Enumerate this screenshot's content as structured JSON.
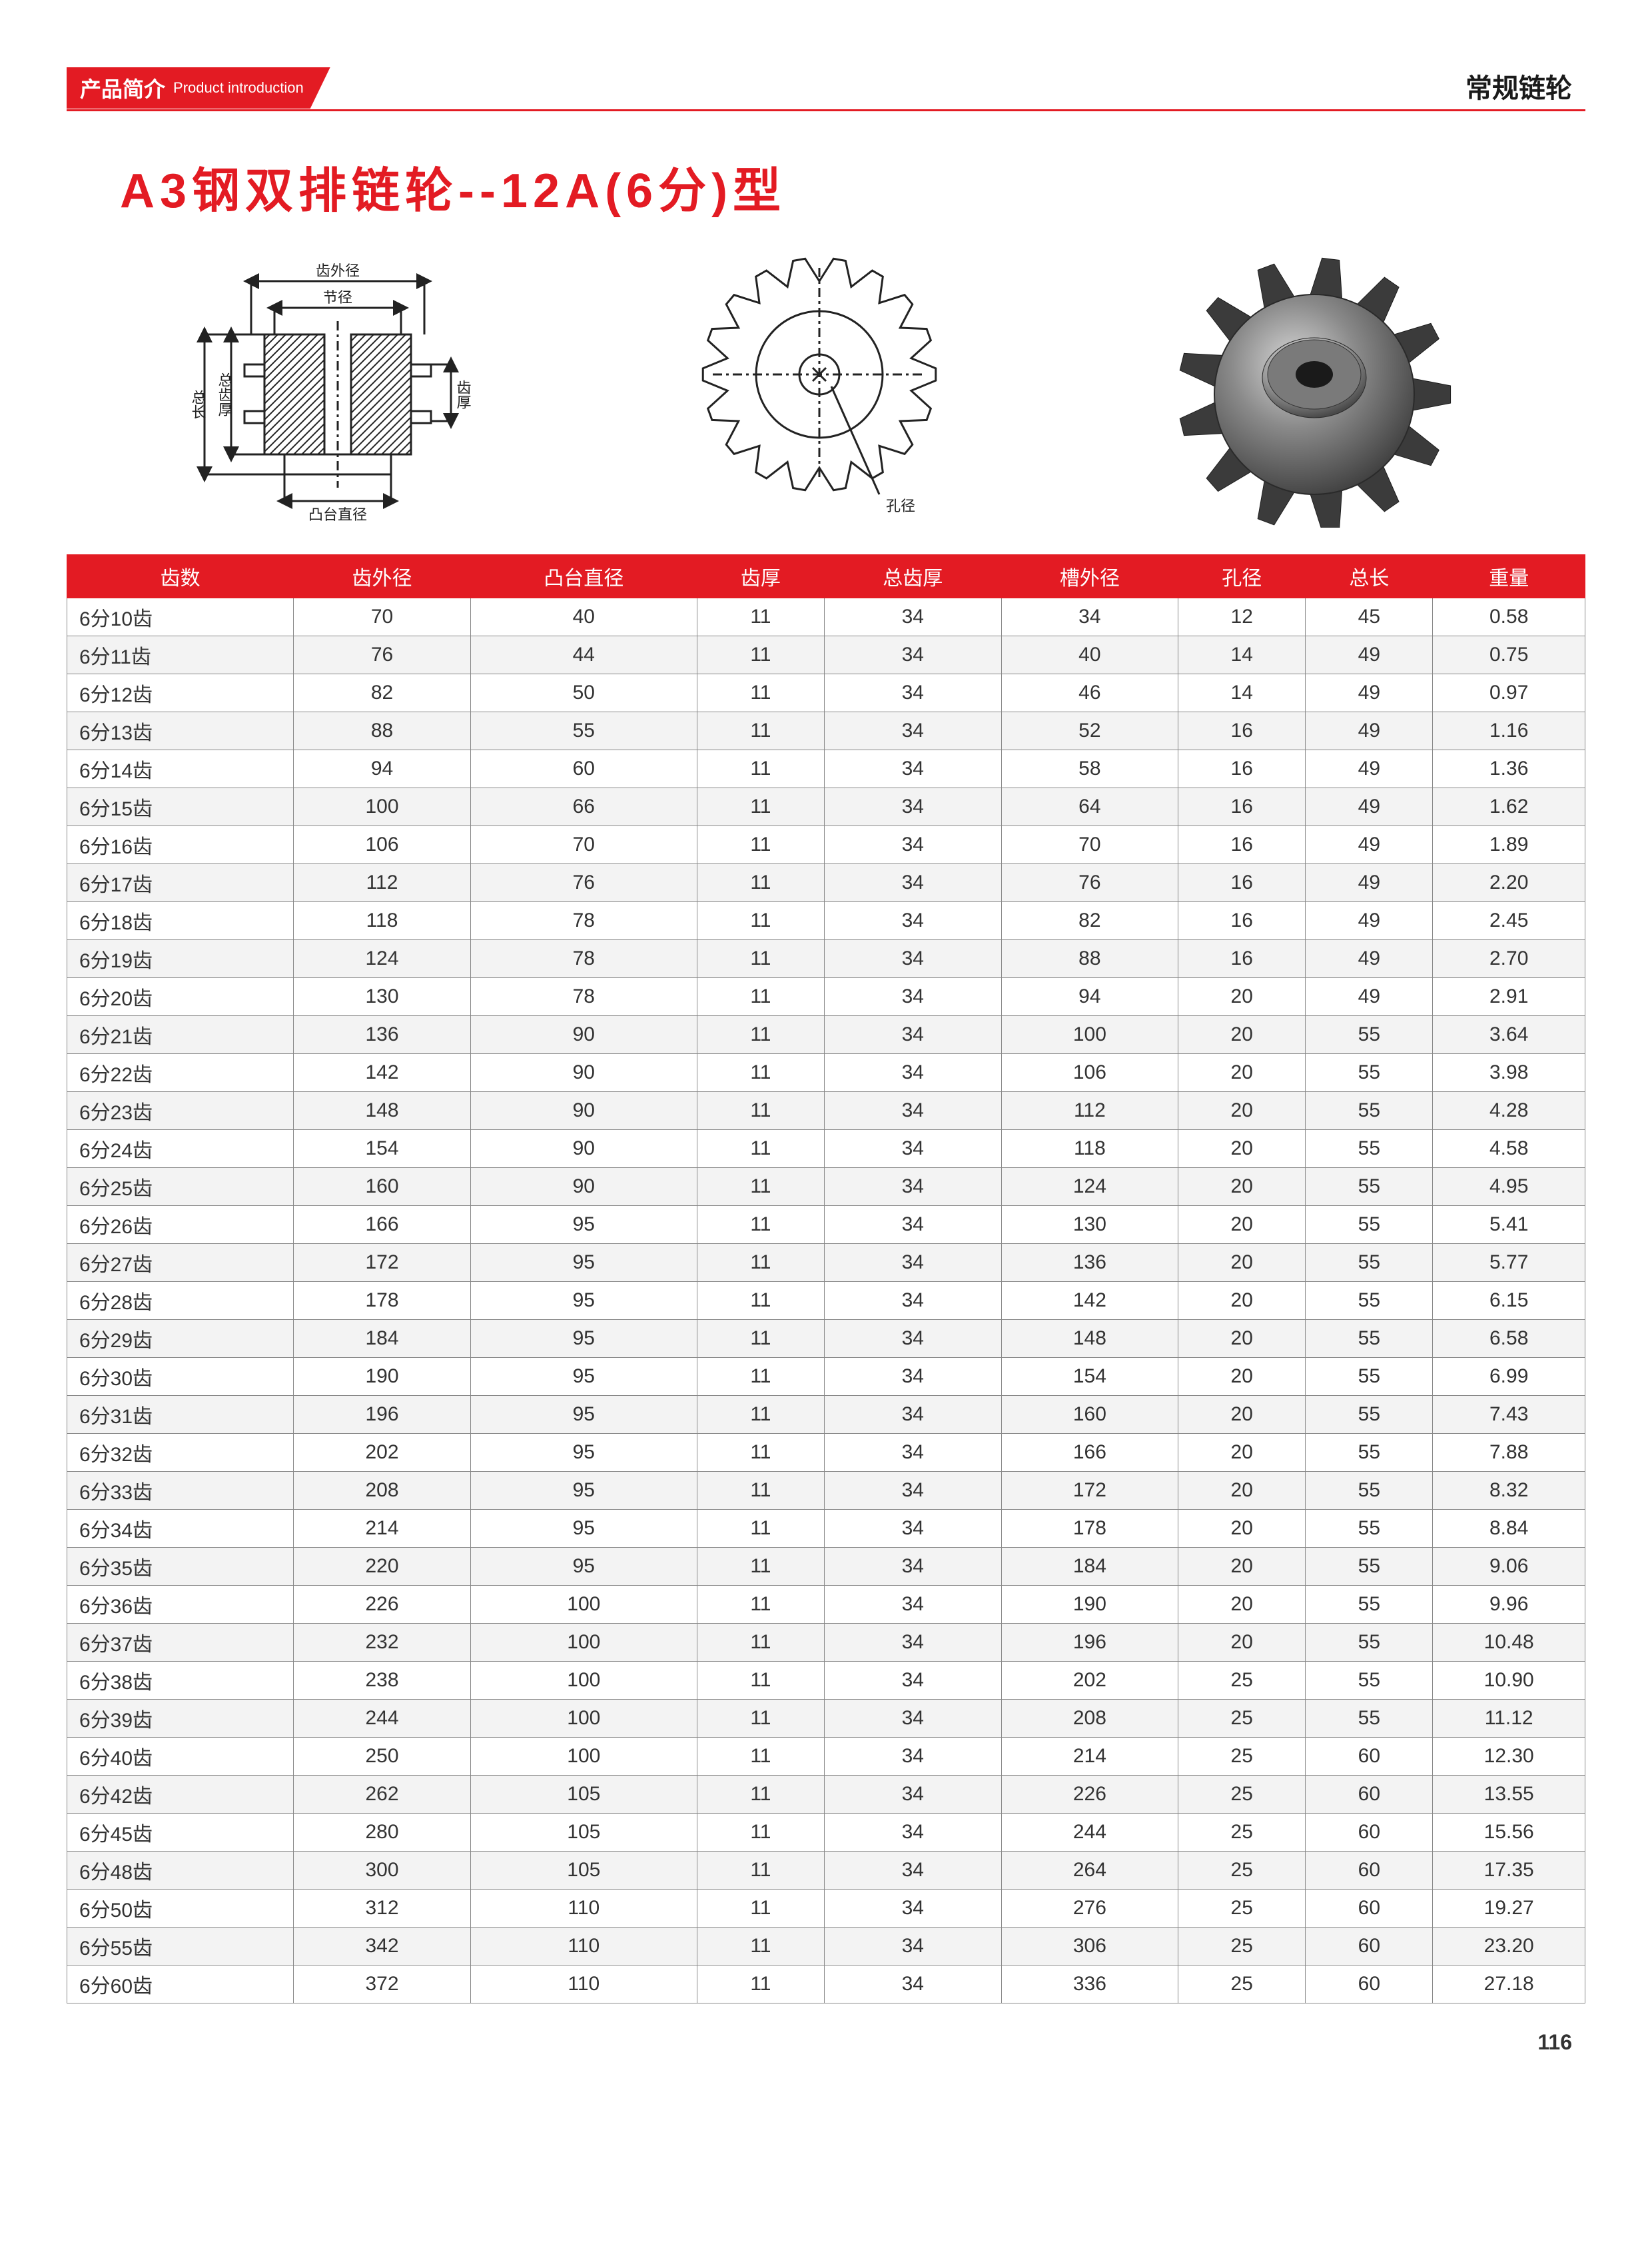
{
  "header": {
    "section_zh": "产品简介",
    "section_en": "Product introduction",
    "category": "常规链轮"
  },
  "product_title": "A3钢双排链轮--12A(6分)型",
  "diagram_labels": {
    "side": {
      "outer_dia": "齿外径",
      "pitch_dia": "节径",
      "boss_dia": "凸台直径",
      "tooth_thick": "齿厚",
      "total_thick": "总齿厚",
      "total_len": "总长"
    },
    "front": {
      "bore": "孔径"
    }
  },
  "table": {
    "header_bg": "#e31b23",
    "header_fg": "#ffffff",
    "border_color": "#888888",
    "alt_row_bg": "#f3f3f3",
    "columns": [
      "齿数",
      "齿外径",
      "凸台直径",
      "齿厚",
      "总齿厚",
      "槽外径",
      "孔径",
      "总长",
      "重量"
    ],
    "rows": [
      [
        "6分10齿",
        "70",
        "40",
        "11",
        "34",
        "34",
        "12",
        "45",
        "0.58"
      ],
      [
        "6分11齿",
        "76",
        "44",
        "11",
        "34",
        "40",
        "14",
        "49",
        "0.75"
      ],
      [
        "6分12齿",
        "82",
        "50",
        "11",
        "34",
        "46",
        "14",
        "49",
        "0.97"
      ],
      [
        "6分13齿",
        "88",
        "55",
        "11",
        "34",
        "52",
        "16",
        "49",
        "1.16"
      ],
      [
        "6分14齿",
        "94",
        "60",
        "11",
        "34",
        "58",
        "16",
        "49",
        "1.36"
      ],
      [
        "6分15齿",
        "100",
        "66",
        "11",
        "34",
        "64",
        "16",
        "49",
        "1.62"
      ],
      [
        "6分16齿",
        "106",
        "70",
        "11",
        "34",
        "70",
        "16",
        "49",
        "1.89"
      ],
      [
        "6分17齿",
        "112",
        "76",
        "11",
        "34",
        "76",
        "16",
        "49",
        "2.20"
      ],
      [
        "6分18齿",
        "118",
        "78",
        "11",
        "34",
        "82",
        "16",
        "49",
        "2.45"
      ],
      [
        "6分19齿",
        "124",
        "78",
        "11",
        "34",
        "88",
        "16",
        "49",
        "2.70"
      ],
      [
        "6分20齿",
        "130",
        "78",
        "11",
        "34",
        "94",
        "20",
        "49",
        "2.91"
      ],
      [
        "6分21齿",
        "136",
        "90",
        "11",
        "34",
        "100",
        "20",
        "55",
        "3.64"
      ],
      [
        "6分22齿",
        "142",
        "90",
        "11",
        "34",
        "106",
        "20",
        "55",
        "3.98"
      ],
      [
        "6分23齿",
        "148",
        "90",
        "11",
        "34",
        "112",
        "20",
        "55",
        "4.28"
      ],
      [
        "6分24齿",
        "154",
        "90",
        "11",
        "34",
        "118",
        "20",
        "55",
        "4.58"
      ],
      [
        "6分25齿",
        "160",
        "90",
        "11",
        "34",
        "124",
        "20",
        "55",
        "4.95"
      ],
      [
        "6分26齿",
        "166",
        "95",
        "11",
        "34",
        "130",
        "20",
        "55",
        "5.41"
      ],
      [
        "6分27齿",
        "172",
        "95",
        "11",
        "34",
        "136",
        "20",
        "55",
        "5.77"
      ],
      [
        "6分28齿",
        "178",
        "95",
        "11",
        "34",
        "142",
        "20",
        "55",
        "6.15"
      ],
      [
        "6分29齿",
        "184",
        "95",
        "11",
        "34",
        "148",
        "20",
        "55",
        "6.58"
      ],
      [
        "6分30齿",
        "190",
        "95",
        "11",
        "34",
        "154",
        "20",
        "55",
        "6.99"
      ],
      [
        "6分31齿",
        "196",
        "95",
        "11",
        "34",
        "160",
        "20",
        "55",
        "7.43"
      ],
      [
        "6分32齿",
        "202",
        "95",
        "11",
        "34",
        "166",
        "20",
        "55",
        "7.88"
      ],
      [
        "6分33齿",
        "208",
        "95",
        "11",
        "34",
        "172",
        "20",
        "55",
        "8.32"
      ],
      [
        "6分34齿",
        "214",
        "95",
        "11",
        "34",
        "178",
        "20",
        "55",
        "8.84"
      ],
      [
        "6分35齿",
        "220",
        "95",
        "11",
        "34",
        "184",
        "20",
        "55",
        "9.06"
      ],
      [
        "6分36齿",
        "226",
        "100",
        "11",
        "34",
        "190",
        "20",
        "55",
        "9.96"
      ],
      [
        "6分37齿",
        "232",
        "100",
        "11",
        "34",
        "196",
        "20",
        "55",
        "10.48"
      ],
      [
        "6分38齿",
        "238",
        "100",
        "11",
        "34",
        "202",
        "25",
        "55",
        "10.90"
      ],
      [
        "6分39齿",
        "244",
        "100",
        "11",
        "34",
        "208",
        "25",
        "55",
        "11.12"
      ],
      [
        "6分40齿",
        "250",
        "100",
        "11",
        "34",
        "214",
        "25",
        "60",
        "12.30"
      ],
      [
        "6分42齿",
        "262",
        "105",
        "11",
        "34",
        "226",
        "25",
        "60",
        "13.55"
      ],
      [
        "6分45齿",
        "280",
        "105",
        "11",
        "34",
        "244",
        "25",
        "60",
        "15.56"
      ],
      [
        "6分48齿",
        "300",
        "105",
        "11",
        "34",
        "264",
        "25",
        "60",
        "17.35"
      ],
      [
        "6分50齿",
        "312",
        "110",
        "11",
        "34",
        "276",
        "25",
        "60",
        "19.27"
      ],
      [
        "6分55齿",
        "342",
        "110",
        "11",
        "34",
        "306",
        "25",
        "60",
        "23.20"
      ],
      [
        "6分60齿",
        "372",
        "110",
        "11",
        "34",
        "336",
        "25",
        "60",
        "27.18"
      ]
    ]
  },
  "page_number": "116"
}
